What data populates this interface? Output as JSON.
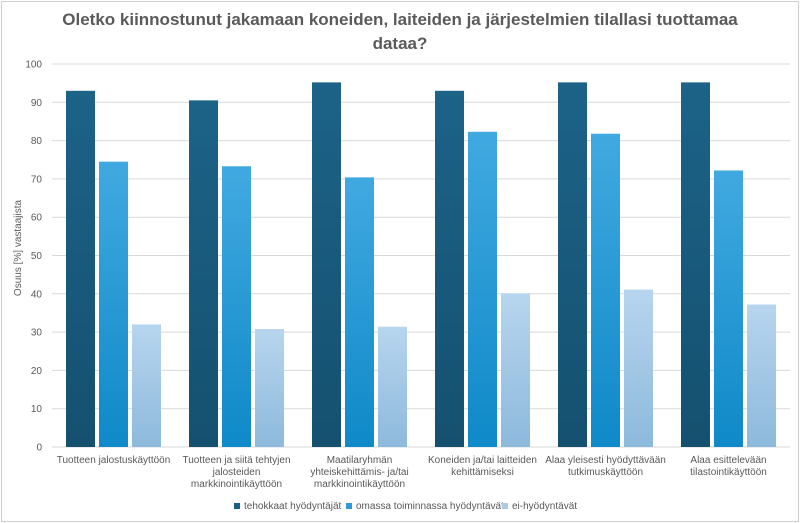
{
  "chart_data": {
    "type": "bar",
    "title_lines": [
      "Oletko kiinnostunut jakamaan koneiden, laiteiden ja järjestelmien tilallasi tuottamaa",
      "dataa?"
    ],
    "ylabel": "Osuus [%] vastaajista",
    "xlabel": "",
    "ylim": [
      0,
      100
    ],
    "yticks": [
      0,
      10,
      20,
      30,
      40,
      50,
      60,
      70,
      80,
      90,
      100
    ],
    "grid": true,
    "legend_position": "bottom",
    "categories": [
      [
        "Tuotteen jalostuskäyttöön"
      ],
      [
        "Tuotteen ja siitä tehtyjen",
        "jalosteiden",
        "markkinointikäyttöön"
      ],
      [
        "Maatilaryhmän",
        "yhteiskehittämis- ja/tai",
        "markkinointikäyttöön"
      ],
      [
        "Koneiden ja/tai laitteiden",
        "kehittämiseksi"
      ],
      [
        "Alaa yleisesti hyödyttävään",
        "tutkimuskäyttöön"
      ],
      [
        "Alaa esittelevään",
        "tilastointikäyttöön"
      ]
    ],
    "series": [
      {
        "name": "tehokkaat hyödyntäjät",
        "values": [
          93,
          90.5,
          95.2,
          93,
          95.2,
          95.2
        ],
        "color": "#1b5f86"
      },
      {
        "name": "omassa toiminnassa hyödyntävät",
        "values": [
          74.5,
          73.3,
          70.4,
          82.3,
          81.8,
          72.2
        ],
        "color": "#2f9ad6"
      },
      {
        "name": "ei-hyödyntävät",
        "values": [
          32,
          30.8,
          31.4,
          40.1,
          41.1,
          37.2
        ],
        "color": "#a9cbe6"
      }
    ]
  }
}
